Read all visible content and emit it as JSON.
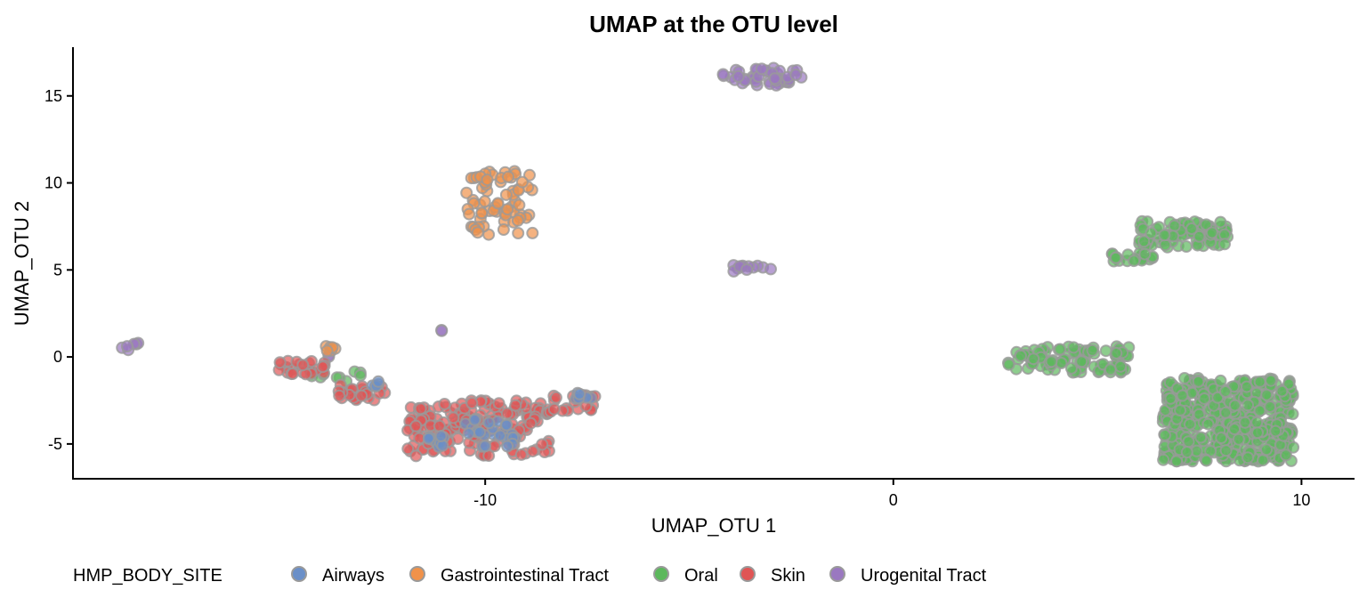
{
  "chart_data": {
    "type": "scatter",
    "title": "UMAP at the OTU level",
    "xlabel": "UMAP_OTU 1",
    "ylabel": "UMAP_OTU 2",
    "xlim": [
      -20.1,
      11.3
    ],
    "ylim": [
      -7.0,
      17.8
    ],
    "xticks": [
      -10,
      0,
      10
    ],
    "yticks": [
      -5,
      0,
      5,
      10,
      15
    ],
    "grid": false,
    "legend": {
      "title": "HMP_BODY_SITE",
      "position": "bottom",
      "entries": [
        {
          "label": "Airways",
          "color": "#6a8fc8"
        },
        {
          "label": "Gastrointestinal Tract",
          "color": "#f0924a"
        },
        {
          "label": "Oral",
          "color": "#5cb85c"
        },
        {
          "label": "Skin",
          "color": "#e05555"
        },
        {
          "label": "Urogenital Tract",
          "color": "#9a78c0"
        }
      ]
    },
    "series": [
      {
        "name": "Urogenital Tract",
        "clusters": [
          {
            "x": [
              -4.2,
              -2.2
            ],
            "y": [
              15.6,
              16.6
            ],
            "n": 45
          },
          {
            "x": [
              -4.0,
              -3.0
            ],
            "y": [
              4.8,
              5.3
            ],
            "n": 12
          },
          {
            "x": [
              -18.9,
              -18.4
            ],
            "y": [
              0.4,
              0.8
            ],
            "n": 6
          },
          {
            "x": [
              -11.2,
              -11.0
            ],
            "y": [
              1.4,
              1.6
            ],
            "n": 2
          },
          {
            "x": [
              -13.9,
              -13.8
            ],
            "y": [
              0.0,
              0.1
            ],
            "n": 2
          }
        ]
      },
      {
        "name": "Gastrointestinal Tract",
        "clusters": [
          {
            "x": [
              -10.5,
              -8.8
            ],
            "y": [
              7.0,
              10.7
            ],
            "n": 70
          },
          {
            "x": [
              -14.0,
              -13.6
            ],
            "y": [
              0.3,
              0.7
            ],
            "n": 6
          }
        ]
      },
      {
        "name": "Oral",
        "clusters": [
          {
            "x": [
              6.0,
              8.2
            ],
            "y": [
              6.3,
              7.8
            ],
            "n": 80
          },
          {
            "x": [
              5.2,
              6.4
            ],
            "y": [
              5.5,
              6.0
            ],
            "n": 20
          },
          {
            "x": [
              2.8,
              5.8
            ],
            "y": [
              -0.9,
              0.6
            ],
            "n": 90
          },
          {
            "x": [
              6.6,
              9.8
            ],
            "y": [
              -6.0,
              -1.2
            ],
            "n": 500
          },
          {
            "x": [
              -14.3,
              -12.6
            ],
            "y": [
              -1.4,
              -0.8
            ],
            "n": 10
          }
        ]
      },
      {
        "name": "Skin",
        "clusters": [
          {
            "x": [
              -15.2,
              -13.9
            ],
            "y": [
              -1.0,
              -0.2
            ],
            "n": 25
          },
          {
            "x": [
              -13.6,
              -12.4
            ],
            "y": [
              -2.5,
              -1.6
            ],
            "n": 25
          },
          {
            "x": [
              -11.9,
              -8.4
            ],
            "y": [
              -5.7,
              -2.5
            ],
            "n": 180
          },
          {
            "x": [
              -8.4,
              -7.2
            ],
            "y": [
              -3.2,
              -2.2
            ],
            "n": 20
          }
        ]
      },
      {
        "name": "Airways",
        "clusters": [
          {
            "x": [
              -11.4,
              -11.0
            ],
            "y": [
              -5.2,
              -4.5
            ],
            "n": 10
          },
          {
            "x": [
              -10.5,
              -9.2
            ],
            "y": [
              -5.2,
              -3.5
            ],
            "n": 25
          },
          {
            "x": [
              -7.8,
              -7.4
            ],
            "y": [
              -2.4,
              -2.0
            ],
            "n": 6
          },
          {
            "x": [
              -13.0,
              -12.6
            ],
            "y": [
              -1.7,
              -1.4
            ],
            "n": 5
          }
        ]
      }
    ]
  }
}
